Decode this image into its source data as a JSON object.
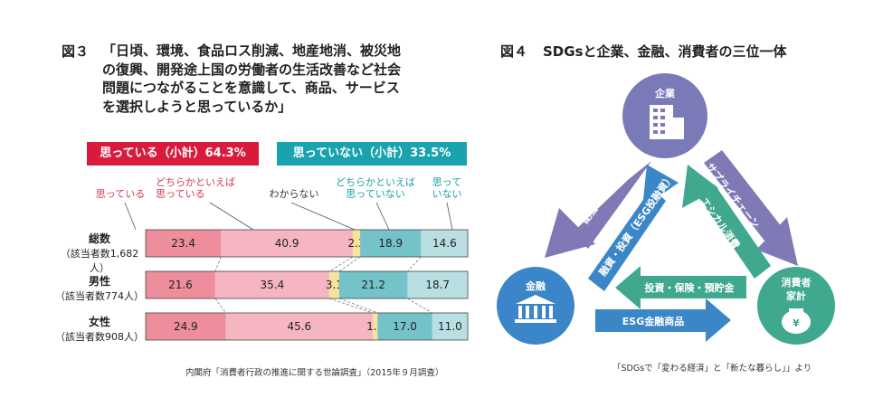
{
  "figure3": {
    "label": "図３",
    "title": "「日頃、環境、食品ロス削減、地産地消、被災地の復興、開発途上国の労働者の生活改善など社会問題につながることを意識して、商品、サービスを選択しようと思っているか」",
    "summary_yes": "思っている（小計）64.3%",
    "summary_no": "思っていない（小計）33.5%",
    "categories": {
      "c1": "思っている",
      "c2": "どちらかといえば\n思っている",
      "c3": "わからない",
      "c4": "どちらかといえば\n思っていない",
      "c5": "思って\nいない"
    },
    "rows": [
      {
        "name": "総数",
        "sub": "（該当者数1,682人）"
      },
      {
        "name": "男性",
        "sub": "（該当者数774人）"
      },
      {
        "name": "女性",
        "sub": "（該当者数908人）"
      }
    ],
    "source": "内閣府「消費者行政の推進に関する世論調査」（2015年９月調査）"
  },
  "chart_data": {
    "type": "bar",
    "stacked": true,
    "orientation": "horizontal",
    "categories": [
      "総数",
      "男性",
      "女性"
    ],
    "series": [
      {
        "name": "思っている",
        "values": [
          23.4,
          21.6,
          24.9
        ],
        "color": "#ee8d9b"
      },
      {
        "name": "どちらかといえば思っている",
        "values": [
          40.9,
          35.4,
          45.6
        ],
        "color": "#f5b6c1"
      },
      {
        "name": "わからない",
        "values": [
          2.3,
          3.1,
          1.5
        ],
        "color": "#f7e39c"
      },
      {
        "name": "どちらかといえば思っていない",
        "values": [
          18.9,
          21.2,
          17.0
        ],
        "color": "#74c3c9"
      },
      {
        "name": "思っていない",
        "values": [
          14.6,
          18.7,
          11.0
        ],
        "color": "#b9dfe3"
      }
    ],
    "xlim": [
      0,
      100
    ]
  },
  "figure4": {
    "label": "図４",
    "title": "SDGsと企業、金融、消費者の三位一体",
    "nodes": {
      "company": "企業",
      "finance": "金融",
      "consumer_line1": "消費者",
      "consumer_line2": "家計"
    },
    "arrows": {
      "dividend": "配当リターン",
      "investment": "融資・投資（ESG投融資）",
      "supply_chain": "サプライチェーン",
      "ethical": "エシカル消費",
      "savings": "投資・保険・預貯金",
      "esg_products": "ESG金融商品"
    },
    "colors": {
      "company": "#7b7ab8",
      "finance": "#3a86c8",
      "consumer": "#3fa88f"
    },
    "source": "「SDGsで「変わる経済」と「新たな暮らし」」より"
  }
}
